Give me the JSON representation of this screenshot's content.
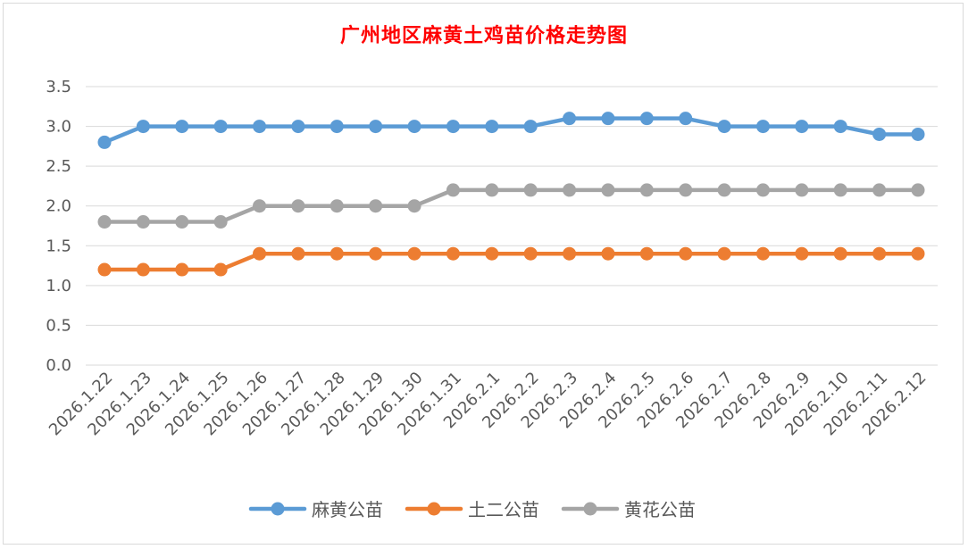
{
  "chart_data": {
    "type": "line",
    "title": "广州地区麻黄土鸡苗价格走势图",
    "xlabel": "",
    "ylabel": "",
    "ylim": [
      0,
      3.5
    ],
    "yticks": [
      "0.0",
      "0.5",
      "1.0",
      "1.5",
      "2.0",
      "2.5",
      "3.0",
      "3.5"
    ],
    "grid": true,
    "legend_position": "bottom",
    "categories": [
      "2026.1.22",
      "2026.1.23",
      "2026.1.24",
      "2026.1.25",
      "2026.1.26",
      "2026.1.27",
      "2026.1.28",
      "2026.1.29",
      "2026.1.30",
      "2026.1.31",
      "2026.2.1",
      "2026.2.2",
      "2026.2.3",
      "2026.2.4",
      "2026.2.5",
      "2026.2.6",
      "2026.2.7",
      "2026.2.8",
      "2026.2.9",
      "2026.2.10",
      "2026.2.11",
      "2026.2.12"
    ],
    "series": [
      {
        "name": "麻黄公苗",
        "color": "#5b9bd5",
        "values": [
          2.8,
          3.0,
          3.0,
          3.0,
          3.0,
          3.0,
          3.0,
          3.0,
          3.0,
          3.0,
          3.0,
          3.0,
          3.1,
          3.1,
          3.1,
          3.1,
          3.0,
          3.0,
          3.0,
          3.0,
          2.9,
          2.9
        ]
      },
      {
        "name": "土二公苗",
        "color": "#ed7d31",
        "values": [
          1.2,
          1.2,
          1.2,
          1.2,
          1.4,
          1.4,
          1.4,
          1.4,
          1.4,
          1.4,
          1.4,
          1.4,
          1.4,
          1.4,
          1.4,
          1.4,
          1.4,
          1.4,
          1.4,
          1.4,
          1.4,
          1.4
        ]
      },
      {
        "name": "黄花公苗",
        "color": "#a5a5a5",
        "values": [
          1.8,
          1.8,
          1.8,
          1.8,
          2.0,
          2.0,
          2.0,
          2.0,
          2.0,
          2.2,
          2.2,
          2.2,
          2.2,
          2.2,
          2.2,
          2.2,
          2.2,
          2.2,
          2.2,
          2.2,
          2.2,
          2.2
        ]
      }
    ]
  }
}
